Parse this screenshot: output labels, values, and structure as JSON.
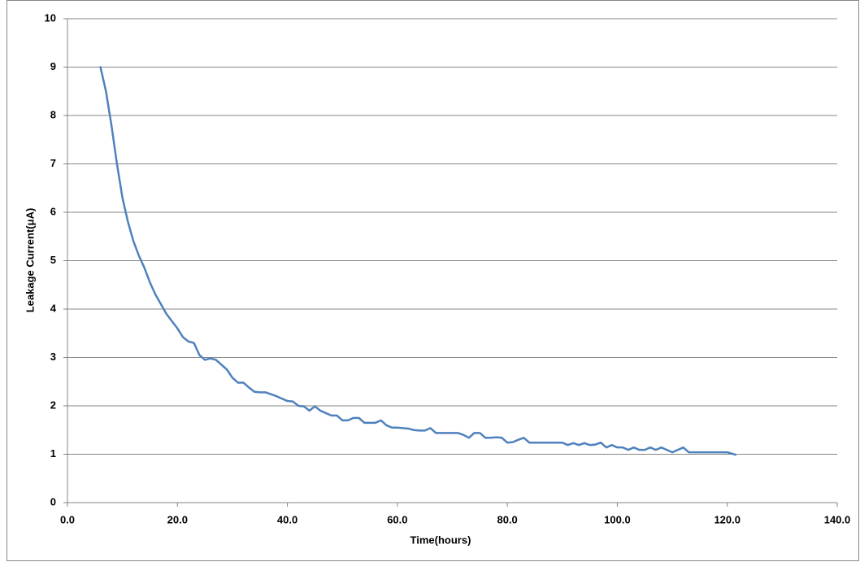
{
  "chart_data": {
    "type": "line",
    "x_label": "Time(hours)",
    "y_label": "Leakage Current(μA)",
    "x": [
      6,
      7,
      8,
      9,
      10,
      11,
      12,
      13,
      14,
      15,
      16,
      17,
      18,
      19,
      20,
      21,
      22,
      23,
      24,
      25,
      26,
      27,
      28,
      29,
      30,
      31,
      32,
      33,
      34,
      35,
      36,
      38,
      40,
      41,
      42,
      43,
      44,
      45,
      46,
      47,
      48,
      49,
      50,
      51,
      52,
      53,
      54,
      55,
      56,
      57,
      58,
      59,
      60,
      62,
      63,
      64,
      65,
      66,
      67,
      68,
      70,
      71,
      72,
      73,
      74,
      75,
      76,
      77,
      78,
      79,
      80,
      81,
      82,
      83,
      84,
      85,
      88,
      89,
      90,
      91,
      92,
      93,
      94,
      95,
      96,
      97,
      98,
      99,
      100,
      101,
      102,
      103,
      104,
      105,
      106,
      107,
      108,
      109,
      110,
      111,
      112,
      113,
      114,
      116,
      118,
      120,
      121.5
    ],
    "series": [
      {
        "name": "Leakage Current",
        "color": "#4f81bd",
        "values": [
          9.0,
          8.5,
          7.8,
          7.0,
          6.3,
          5.8,
          5.4,
          5.1,
          4.85,
          4.55,
          4.3,
          4.1,
          3.9,
          3.75,
          3.6,
          3.42,
          3.33,
          3.3,
          3.05,
          2.95,
          2.98,
          2.95,
          2.85,
          2.75,
          2.58,
          2.48,
          2.48,
          2.38,
          2.29,
          2.28,
          2.28,
          2.2,
          2.1,
          2.09,
          2.0,
          1.99,
          1.9,
          1.99,
          1.9,
          1.85,
          1.8,
          1.8,
          1.7,
          1.7,
          1.75,
          1.75,
          1.65,
          1.65,
          1.65,
          1.7,
          1.6,
          1.55,
          1.55,
          1.53,
          1.5,
          1.49,
          1.49,
          1.54,
          1.44,
          1.44,
          1.44,
          1.44,
          1.4,
          1.34,
          1.44,
          1.44,
          1.34,
          1.34,
          1.35,
          1.34,
          1.24,
          1.25,
          1.3,
          1.34,
          1.24,
          1.24,
          1.24,
          1.24,
          1.24,
          1.19,
          1.23,
          1.19,
          1.23,
          1.19,
          1.2,
          1.24,
          1.14,
          1.19,
          1.14,
          1.14,
          1.09,
          1.14,
          1.09,
          1.09,
          1.14,
          1.09,
          1.14,
          1.09,
          1.04,
          1.09,
          1.14,
          1.04,
          1.04,
          1.04,
          1.04,
          1.04,
          0.99
        ]
      }
    ],
    "xlim": [
      0,
      140
    ],
    "xticks": [
      {
        "value": 0,
        "label": "0.0"
      },
      {
        "value": 20,
        "label": "20.0"
      },
      {
        "value": 40,
        "label": "40.0"
      },
      {
        "value": 60,
        "label": "60.0"
      },
      {
        "value": 80,
        "label": "80.0"
      },
      {
        "value": 100,
        "label": "100.0"
      },
      {
        "value": 120,
        "label": "120.0"
      },
      {
        "value": 140,
        "label": "140.0"
      }
    ],
    "ylim": [
      0,
      10
    ],
    "yticks": [
      0,
      1,
      2,
      3,
      4,
      5,
      6,
      7,
      8,
      9,
      10
    ],
    "grid": true
  }
}
